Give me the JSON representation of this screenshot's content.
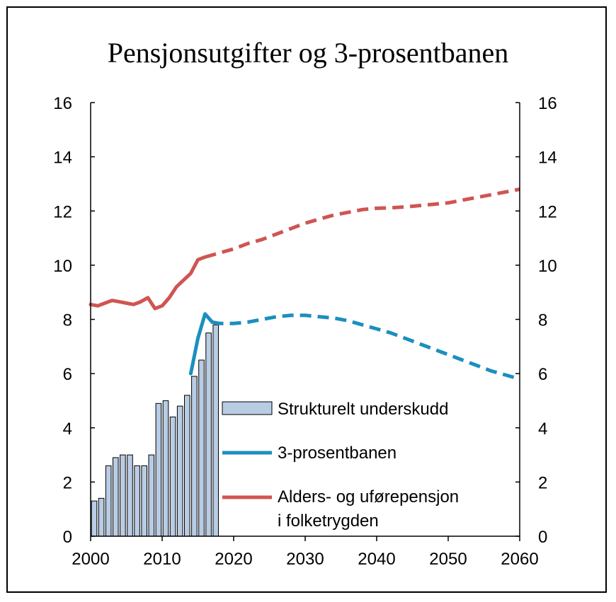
{
  "chart_data": {
    "type": "bar+line",
    "title": "Pensjonsutgifter og 3-prosentbanen",
    "xlabel": "",
    "ylabel": "",
    "xlim": [
      2000,
      2060
    ],
    "ylim": [
      0,
      16
    ],
    "x_ticks": [
      2000,
      2010,
      2020,
      2030,
      2040,
      2050,
      2060
    ],
    "y_ticks": [
      0,
      2,
      4,
      6,
      8,
      10,
      12,
      14,
      16
    ],
    "grid": false,
    "colors": {
      "bars": "#b8cce4",
      "bar_edge": "#000000",
      "tre_prosent": "#1b8fbf",
      "alders": "#cf5552"
    },
    "bars": {
      "name": "Strukturelt underskudd",
      "x": [
        2000,
        2001,
        2002,
        2003,
        2004,
        2005,
        2006,
        2007,
        2008,
        2009,
        2010,
        2011,
        2012,
        2013,
        2014,
        2015,
        2016,
        2017
      ],
      "values": [
        1.3,
        1.4,
        2.6,
        2.9,
        3.0,
        3.0,
        2.6,
        2.6,
        3.0,
        4.9,
        5.0,
        4.4,
        4.8,
        5.2,
        5.9,
        6.5,
        7.5,
        7.8
      ]
    },
    "series": [
      {
        "name": "3-prosentbanen",
        "historical": {
          "x": [
            2014,
            2015,
            2016,
            2017
          ],
          "values": [
            6.0,
            7.3,
            8.2,
            7.9
          ]
        },
        "projection": {
          "x": [
            2017,
            2018,
            2020,
            2022,
            2024,
            2026,
            2028,
            2030,
            2032,
            2034,
            2036,
            2038,
            2040,
            2042,
            2044,
            2046,
            2048,
            2050,
            2052,
            2054,
            2056,
            2058,
            2060
          ],
          "values": [
            7.9,
            7.85,
            7.85,
            7.9,
            8.0,
            8.1,
            8.15,
            8.15,
            8.1,
            8.05,
            7.95,
            7.8,
            7.65,
            7.5,
            7.3,
            7.1,
            6.9,
            6.7,
            6.5,
            6.3,
            6.1,
            5.95,
            5.8
          ]
        }
      },
      {
        "name": "Alders- og uførepensjon\ni folketrygden",
        "name_lines": [
          "Alders- og uførepensjon",
          "i  folketrygden"
        ],
        "historical": {
          "x": [
            2000,
            2001,
            2002,
            2003,
            2004,
            2005,
            2006,
            2007,
            2008,
            2009,
            2010,
            2011,
            2012,
            2013,
            2014,
            2015,
            2016
          ],
          "values": [
            8.55,
            8.5,
            8.6,
            8.7,
            8.65,
            8.6,
            8.55,
            8.65,
            8.8,
            8.4,
            8.5,
            8.8,
            9.2,
            9.45,
            9.7,
            10.2,
            10.3
          ]
        },
        "projection": {
          "x": [
            2016,
            2018,
            2020,
            2022,
            2024,
            2026,
            2028,
            2030,
            2032,
            2034,
            2036,
            2038,
            2040,
            2042,
            2044,
            2046,
            2048,
            2050,
            2052,
            2054,
            2056,
            2058,
            2060
          ],
          "values": [
            10.3,
            10.45,
            10.6,
            10.8,
            10.95,
            11.15,
            11.35,
            11.55,
            11.7,
            11.85,
            11.95,
            12.05,
            12.1,
            12.12,
            12.15,
            12.2,
            12.25,
            12.3,
            12.4,
            12.5,
            12.6,
            12.7,
            12.8
          ]
        }
      }
    ],
    "legend": [
      "Strukturelt underskudd",
      "3-prosentbanen",
      "Alders- og uførepensjon i  folketrygden"
    ],
    "legend_position": "center-right"
  }
}
